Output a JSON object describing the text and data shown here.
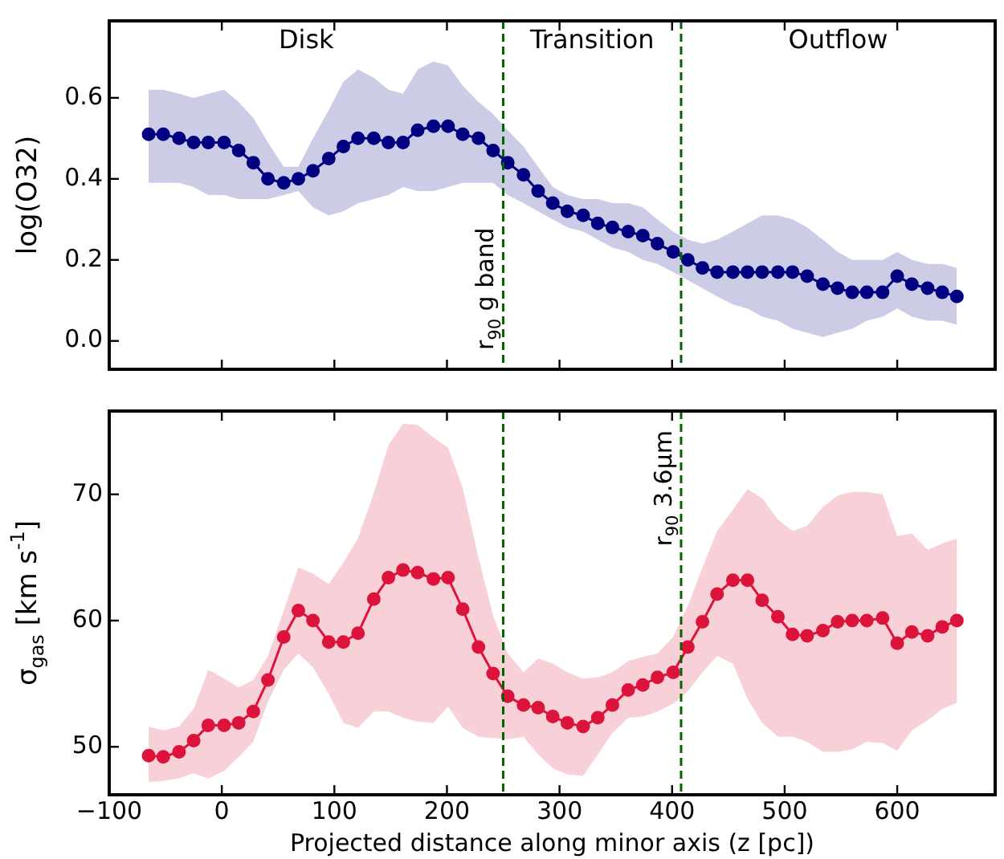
{
  "chart_data": [
    {
      "type": "line",
      "ylabel": "log(O32)",
      "marker": "circle",
      "tick_labels": "y",
      "x": [
        -65,
        -52,
        -38,
        -25,
        -12,
        2,
        15,
        28,
        41,
        55,
        68,
        81,
        95,
        108,
        121,
        135,
        148,
        161,
        174,
        188,
        201,
        214,
        228,
        241,
        254,
        268,
        281,
        294,
        307,
        321,
        334,
        347,
        361,
        374,
        387,
        401,
        414,
        427,
        440,
        454,
        467,
        480,
        494,
        507,
        520,
        534,
        547,
        560,
        573,
        587,
        600,
        613,
        627,
        640,
        653
      ],
      "xlim": [
        -100,
        687
      ],
      "xticks": [
        -100,
        0,
        100,
        200,
        300,
        400,
        500,
        600
      ],
      "ylim": [
        -0.07,
        0.79
      ],
      "yticks": [
        {
          "value": 0,
          "label": "0.0"
        },
        {
          "value": 0.2,
          "label": "0.2"
        },
        {
          "value": 0.4,
          "label": "0.4"
        },
        {
          "value": 0.6,
          "label": "0.6"
        }
      ],
      "series": [
        {
          "color": "#000080",
          "values": [
            0.51,
            0.51,
            0.5,
            0.49,
            0.49,
            0.49,
            0.47,
            0.44,
            0.4,
            0.39,
            0.4,
            0.42,
            0.45,
            0.48,
            0.5,
            0.5,
            0.49,
            0.49,
            0.52,
            0.53,
            0.53,
            0.51,
            0.5,
            0.47,
            0.44,
            0.41,
            0.37,
            0.34,
            0.32,
            0.31,
            0.29,
            0.28,
            0.27,
            0.26,
            0.24,
            0.22,
            0.2,
            0.18,
            0.17,
            0.17,
            0.17,
            0.17,
            0.17,
            0.17,
            0.16,
            0.14,
            0.13,
            0.12,
            0.12,
            0.12,
            0.16,
            0.14,
            0.13,
            0.12,
            0.11
          ],
          "upper": [
            0.62,
            0.62,
            0.61,
            0.6,
            0.61,
            0.62,
            0.59,
            0.55,
            0.49,
            0.43,
            0.43,
            0.5,
            0.57,
            0.64,
            0.67,
            0.65,
            0.62,
            0.61,
            0.67,
            0.69,
            0.68,
            0.63,
            0.59,
            0.56,
            0.52,
            0.48,
            0.43,
            0.38,
            0.36,
            0.35,
            0.35,
            0.34,
            0.34,
            0.33,
            0.3,
            0.27,
            0.25,
            0.24,
            0.25,
            0.27,
            0.29,
            0.31,
            0.31,
            0.3,
            0.28,
            0.25,
            0.22,
            0.2,
            0.2,
            0.2,
            0.22,
            0.2,
            0.19,
            0.19,
            0.18
          ],
          "lower": [
            0.39,
            0.39,
            0.39,
            0.38,
            0.36,
            0.36,
            0.35,
            0.35,
            0.35,
            0.36,
            0.37,
            0.33,
            0.31,
            0.32,
            0.34,
            0.35,
            0.36,
            0.38,
            0.37,
            0.37,
            0.38,
            0.39,
            0.39,
            0.39,
            0.36,
            0.34,
            0.32,
            0.3,
            0.28,
            0.27,
            0.25,
            0.23,
            0.22,
            0.2,
            0.19,
            0.17,
            0.15,
            0.13,
            0.11,
            0.09,
            0.08,
            0.06,
            0.05,
            0.03,
            0.02,
            0.01,
            0.02,
            0.03,
            0.05,
            0.06,
            0.08,
            0.06,
            0.05,
            0.05,
            0.04
          ]
        }
      ],
      "ref_lines": [
        {
          "axis": "x",
          "value": 250,
          "label": "r$_{90}$ g band",
          "color": "#006400",
          "line_style": "dashed"
        },
        {
          "axis": "x",
          "value": 408,
          "label": null,
          "color": "#006400",
          "line_style": "dashed"
        }
      ],
      "annotations": [
        "Disk",
        "Transition",
        "Outflow"
      ]
    },
    {
      "type": "line",
      "ylabel": "σ$_{gas}$ [km s$^{-1}$]",
      "xlabel": "Projected distance along minor axis (z [pc])",
      "marker": "circle",
      "x": [
        -65,
        -52,
        -38,
        -25,
        -12,
        2,
        15,
        28,
        41,
        55,
        68,
        81,
        95,
        108,
        121,
        135,
        148,
        161,
        174,
        188,
        201,
        214,
        228,
        241,
        254,
        268,
        281,
        294,
        307,
        321,
        334,
        347,
        361,
        374,
        387,
        401,
        414,
        427,
        440,
        454,
        467,
        480,
        494,
        507,
        520,
        534,
        547,
        560,
        573,
        587,
        600,
        613,
        627,
        640,
        653
      ],
      "xlim": [
        -100,
        687
      ],
      "xticks": [
        {
          "value": -100,
          "label": "−100"
        },
        0,
        100,
        200,
        300,
        400,
        500,
        600
      ],
      "ylim": [
        46.2,
        76.6
      ],
      "yticks": [
        50,
        60,
        70
      ],
      "series": [
        {
          "color": "#dc143c",
          "values": [
            49.3,
            49.2,
            49.6,
            50.5,
            51.7,
            51.7,
            51.9,
            52.8,
            55.3,
            58.7,
            60.8,
            60.0,
            58.3,
            58.3,
            59.0,
            61.7,
            63.4,
            64.0,
            63.8,
            63.3,
            63.4,
            60.9,
            57.9,
            55.8,
            54.0,
            53.3,
            53.1,
            52.4,
            51.9,
            51.6,
            52.3,
            53.3,
            54.5,
            54.9,
            55.5,
            55.9,
            57.9,
            59.9,
            62.1,
            63.2,
            63.2,
            61.6,
            60.3,
            58.9,
            58.8,
            59.2,
            59.9,
            60.0,
            60.0,
            60.2,
            58.2,
            59.1,
            58.8,
            59.5,
            60.0
          ],
          "upper": [
            51.6,
            51.3,
            51.6,
            53.0,
            56.1,
            55.4,
            54.7,
            55.3,
            57.2,
            60.8,
            64.2,
            63.7,
            62.9,
            64.6,
            66.5,
            70.1,
            73.9,
            75.6,
            75.5,
            74.5,
            73.7,
            70.5,
            65.0,
            60.4,
            57.4,
            55.9,
            57.0,
            56.6,
            55.9,
            55.4,
            55.5,
            55.9,
            56.8,
            57.1,
            57.4,
            58.7,
            61.2,
            64.2,
            67.1,
            68.8,
            70.4,
            69.7,
            68.0,
            67.1,
            67.5,
            69.0,
            69.9,
            70.2,
            70.2,
            70.0,
            66.7,
            66.9,
            65.6,
            66.1,
            66.5
          ],
          "lower": [
            47.2,
            47.3,
            47.5,
            47.9,
            47.5,
            48.1,
            49.2,
            50.4,
            53.6,
            56.1,
            57.4,
            56.3,
            54.2,
            51.9,
            51.5,
            52.8,
            52.8,
            52.3,
            52.0,
            51.9,
            53.2,
            51.5,
            50.8,
            50.7,
            50.6,
            50.8,
            49.4,
            48.3,
            47.8,
            47.7,
            49.4,
            51.1,
            52.3,
            52.4,
            52.8,
            53.4,
            54.4,
            55.9,
            57.2,
            56.6,
            53.8,
            51.9,
            50.8,
            50.8,
            50.4,
            49.6,
            49.6,
            49.8,
            50.4,
            50.3,
            49.7,
            51.3,
            52.1,
            53.0,
            53.5
          ]
        }
      ],
      "ref_lines": [
        {
          "axis": "x",
          "value": 250,
          "label": null,
          "color": "#006400",
          "line_style": "dashed"
        },
        {
          "axis": "x",
          "value": 408,
          "label": "r$_{90}$ 3.6μm",
          "color": "#006400",
          "line_style": "dashed"
        }
      ]
    }
  ]
}
